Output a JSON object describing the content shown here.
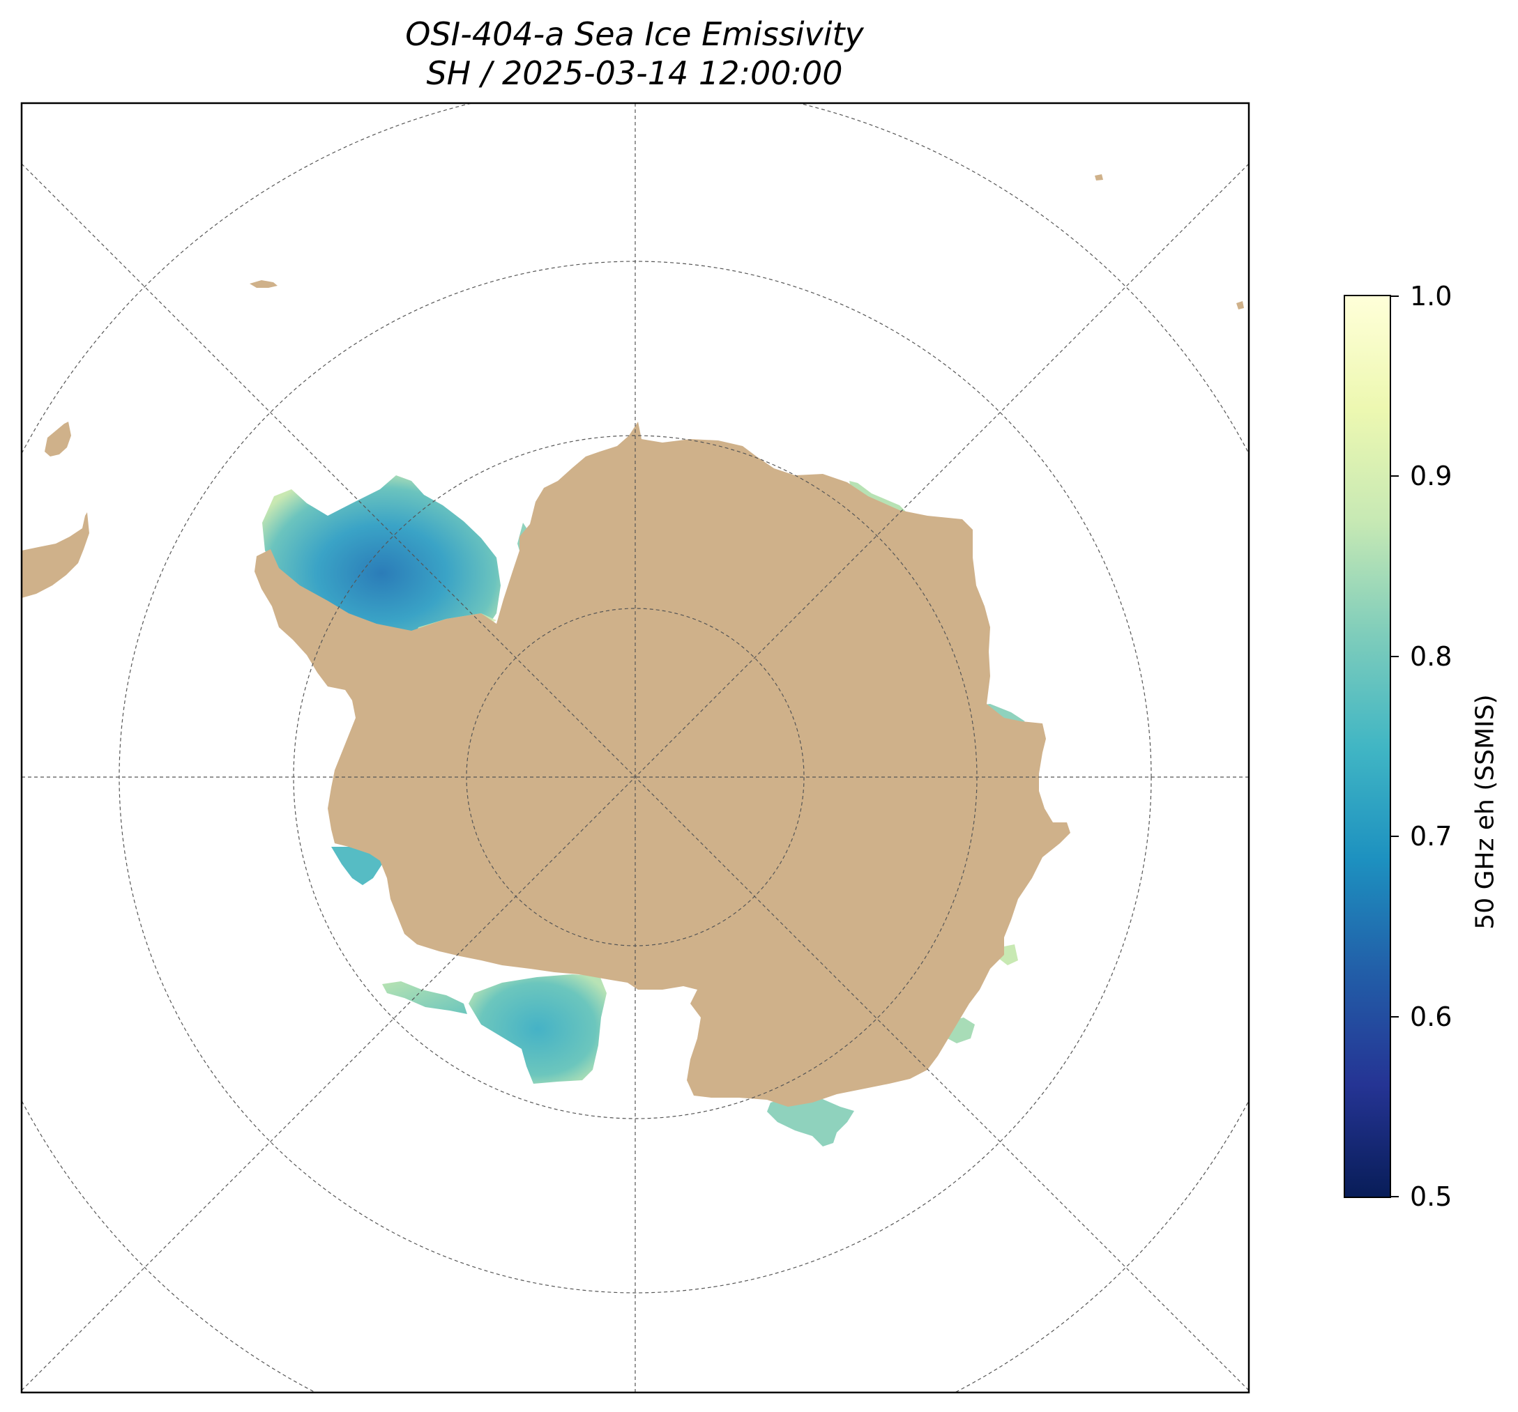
{
  "title": {
    "line1": "OSI-404-a Sea Ice Emissivity",
    "line2": "SH / 2025-03-14 12:00:00"
  },
  "colorbar": {
    "label": "50 GHz eh (SSMIS)",
    "ticks": [
      "1.0",
      "0.9",
      "0.8",
      "0.7",
      "0.6",
      "0.5"
    ],
    "range": [
      0.5,
      1.0
    ],
    "colormap": "YlGnBu_r",
    "stops": [
      "#081d58",
      "#253494",
      "#225ea8",
      "#1d91c0",
      "#41b6c4",
      "#7fcdbb",
      "#c7e9b4",
      "#edf8b1",
      "#ffffd9"
    ]
  },
  "map": {
    "projection": "south-polar-stereographic",
    "land_color": "#cfb18a",
    "gridline_color": "#555555"
  }
}
